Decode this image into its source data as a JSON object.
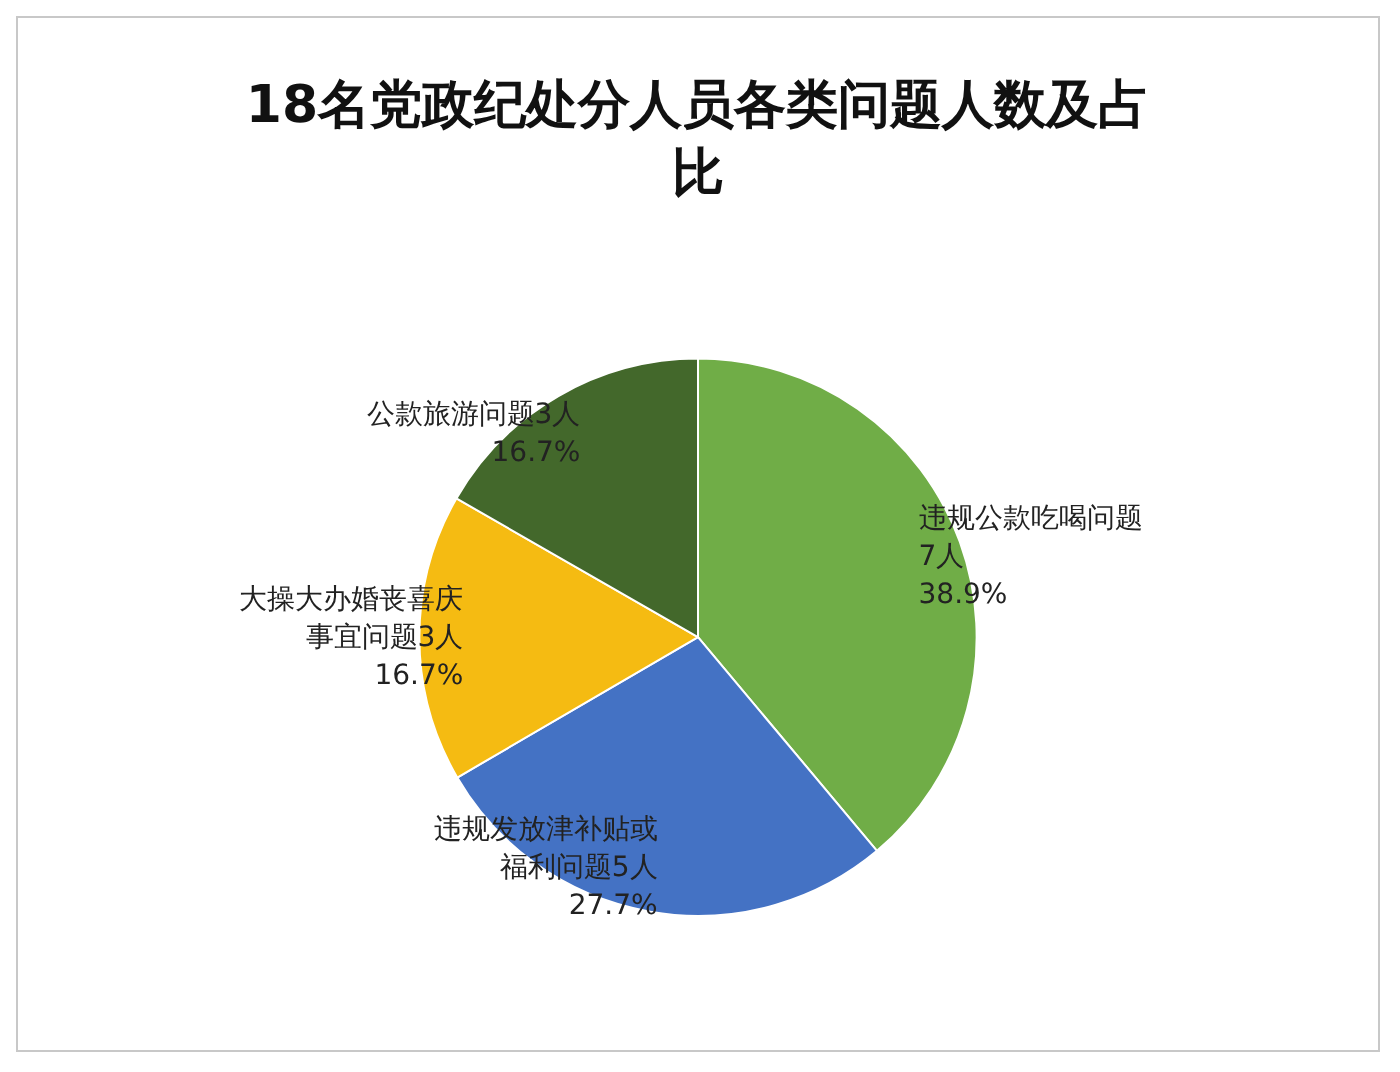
{
  "chart_data": {
    "type": "pie",
    "title": "18名党政纪处分人员各类问题人数及占比",
    "categories": [
      "违规公款吃喝问题7人",
      "违规发放津补贴或福利问题5人",
      "大操大办婚丧喜庆事宜问题3人",
      "公款旅游问题3人"
    ],
    "values": [
      38.9,
      27.7,
      16.7,
      16.7
    ],
    "value_labels": [
      "38.9%",
      "27.7%",
      "16.7%",
      "16.7%"
    ],
    "colors": [
      "#70ad47",
      "#4472c4",
      "#f5bb12",
      "#43682b"
    ],
    "legend": false
  }
}
